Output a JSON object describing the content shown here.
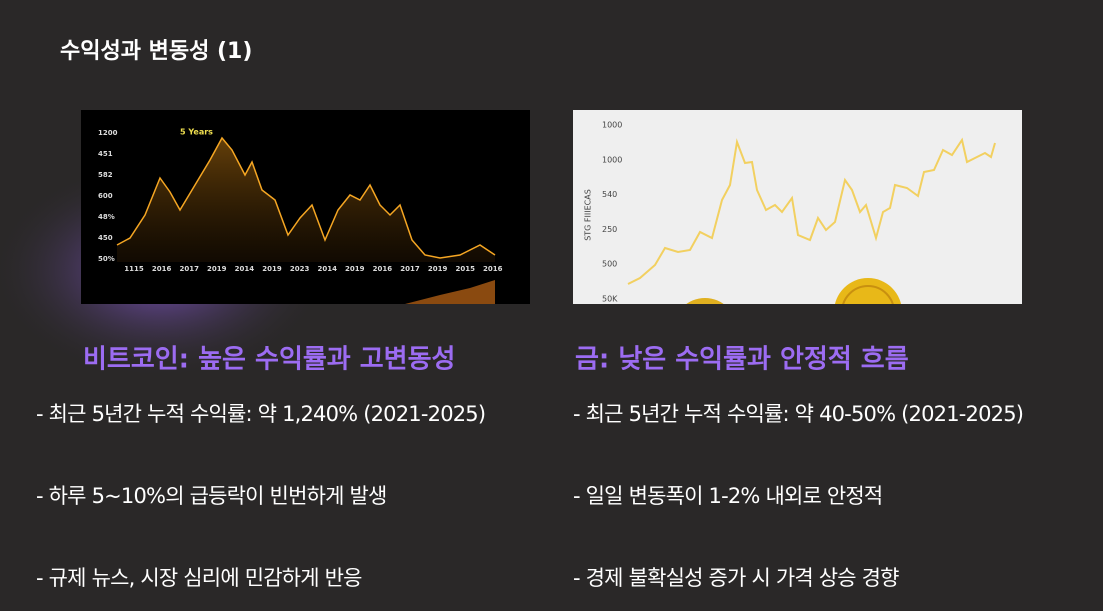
{
  "title": "수익성과 변동성 (1)",
  "left_image": {
    "annotation": "5 Years",
    "y_labels": [
      "1200",
      "451",
      "582",
      "600",
      "48%",
      "450",
      "50%"
    ],
    "x_labels": [
      "1115",
      "2016",
      "2017",
      "2019",
      "2014",
      "2019",
      "2023",
      "2014",
      "2019",
      "2016",
      "2017",
      "2019",
      "2015",
      "2016"
    ]
  },
  "right_image": {
    "axis_label": "STG FIIIECAS",
    "y_labels": [
      "1000",
      "1000",
      "540",
      "250",
      "500",
      "50K"
    ]
  },
  "left": {
    "heading": "비트코인: 높은 수익률과 고변동성",
    "bullets": [
      "- 최근 5년간 누적 수익률: 약 1,240% (2021-2025)",
      "- 하루 5~10%의 급등락이 빈번하게 발생",
      "- 규제 뉴스, 시장 심리에 민감하게 반응"
    ]
  },
  "right": {
    "heading": "금: 낮은 수익률과 안정적 흐름",
    "bullets": [
      "- 최근 5년간 누적 수익률: 약 40-50% (2021-2025)",
      "- 일일 변동폭이 1-2% 내외로 안정적",
      "- 경제 불확실성 증가 시 가격 상승 경향"
    ]
  }
}
